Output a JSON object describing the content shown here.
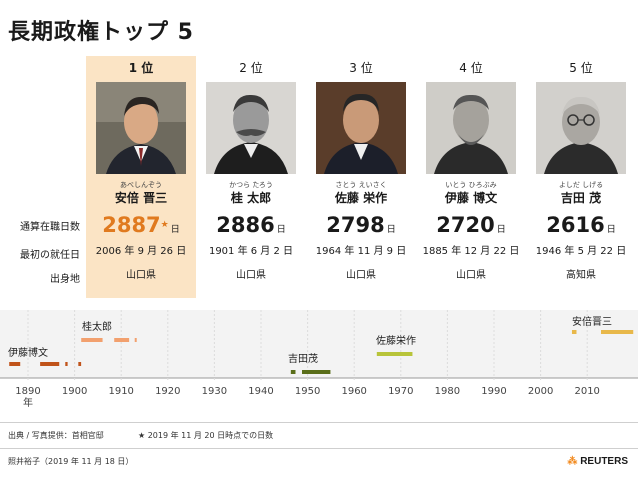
{
  "title": "長期政権トップ 5",
  "row_labels": {
    "days": "通算在職日数",
    "start": "最初の就任日",
    "origin": "出身地"
  },
  "day_unit": "日",
  "star": "★",
  "leaders": [
    {
      "rank": "1 位",
      "ruby": "あべしんぞう",
      "name": "安倍 晋三",
      "days": "2887",
      "start": "2006 年 9 月 26 日",
      "origin": "山口県"
    },
    {
      "rank": "2 位",
      "ruby": "かつら たろう",
      "name": "桂 太郎",
      "days": "2886",
      "start": "1901 年 6 月 2 日",
      "origin": "山口県"
    },
    {
      "rank": "3 位",
      "ruby": "さとう えいさく",
      "name": "佐藤 栄作",
      "days": "2798",
      "start": "1964 年 11 月 9 日",
      "origin": "山口県"
    },
    {
      "rank": "4 位",
      "ruby": "いとう ひろぶみ",
      "name": "伊藤 博文",
      "days": "2720",
      "start": "1885 年 12 月 22 日",
      "origin": "山口県"
    },
    {
      "rank": "5 位",
      "ruby": "よしだ しげる",
      "name": "吉田 茂",
      "days": "2616",
      "start": "1946 年 5 月 22 日",
      "origin": "高知県"
    }
  ],
  "timeline": {
    "axis_labels": [
      "1890",
      "1900",
      "1910",
      "1920",
      "1930",
      "1940",
      "1950",
      "1960",
      "1970",
      "1980",
      "1990",
      "2000",
      "2010"
    ],
    "year_suffix": "年",
    "series": [
      {
        "label": "伊藤博文",
        "color": "#c0531a",
        "terms": [
          [
            1885.97,
            1888.33
          ],
          [
            1892.6,
            1896.7
          ],
          [
            1898.0,
            1898.5
          ],
          [
            1900.8,
            1901.4
          ]
        ]
      },
      {
        "label": "桂太郎",
        "color": "#f2a06e",
        "terms": [
          [
            1901.42,
            1906.0
          ],
          [
            1908.5,
            1911.7
          ],
          [
            1912.9,
            1913.2
          ]
        ]
      },
      {
        "label": "吉田茂",
        "color": "#5a6e1a",
        "terms": [
          [
            1946.4,
            1947.4
          ],
          [
            1948.8,
            1954.9
          ]
        ]
      },
      {
        "label": "佐藤栄作",
        "color": "#b8c43a",
        "terms": [
          [
            1964.85,
            1972.5
          ]
        ]
      },
      {
        "label": "安倍晋三",
        "color": "#e8b84a",
        "terms": [
          [
            2006.73,
            2007.7
          ],
          [
            2012.96,
            2019.88
          ]
        ]
      }
    ]
  },
  "footer": {
    "source": "出典 / 写真提供：首相官邸",
    "note": "★ 2019 年 11 月 20 日時点での日数",
    "credit": "照井裕子（2019 年 11 月 18 日）",
    "brand": "REUTERS"
  }
}
